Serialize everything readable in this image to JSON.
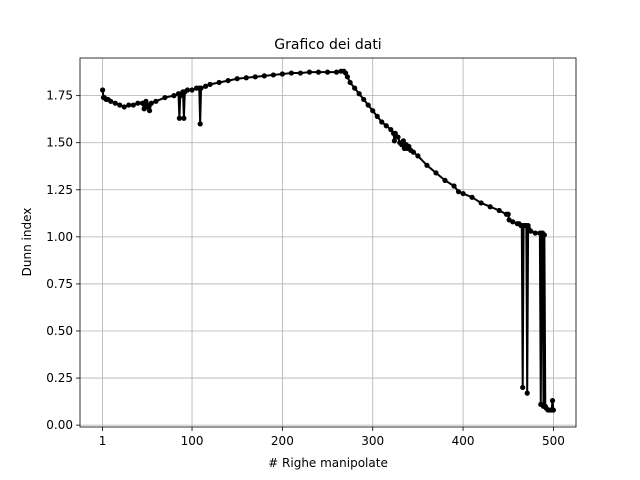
{
  "chart_data": {
    "type": "line",
    "title": "Grafico dei dati",
    "xlabel": "# Righe manipolate",
    "ylabel": "Dunn index",
    "xlim": [
      -24,
      525
    ],
    "ylim": [
      -0.01,
      1.95
    ],
    "x_ticks": [
      1,
      100,
      200,
      300,
      400,
      500
    ],
    "y_ticks": [
      0.0,
      0.25,
      0.5,
      0.75,
      1.0,
      1.25,
      1.5,
      1.75
    ],
    "y_tick_labels": [
      "0.00",
      "0.25",
      "0.50",
      "0.75",
      "1.00",
      "1.25",
      "1.50",
      "1.75"
    ],
    "grid": true,
    "marker": "circle",
    "color": "#000000",
    "series": [
      {
        "x": [
          1,
          2,
          3,
          5,
          7,
          10,
          15,
          20,
          25,
          30,
          35,
          40,
          45,
          47,
          48,
          49,
          50,
          52,
          53,
          55,
          60,
          70,
          80,
          85,
          86,
          87,
          88,
          90,
          91,
          92,
          95,
          100,
          105,
          108,
          109,
          110,
          115,
          120,
          130,
          140,
          150,
          160,
          170,
          180,
          190,
          200,
          210,
          220,
          230,
          240,
          250,
          260,
          265,
          268,
          270,
          272,
          275,
          280,
          285,
          290,
          295,
          300,
          305,
          310,
          315,
          320,
          323,
          324,
          325,
          328,
          330,
          332,
          334,
          335,
          337,
          338,
          340,
          342,
          345,
          350,
          360,
          370,
          380,
          390,
          395,
          400,
          410,
          420,
          430,
          440,
          448,
          450,
          451,
          455,
          460,
          462,
          464,
          465,
          466,
          467,
          468,
          469,
          470,
          471,
          472,
          473,
          475,
          480,
          485,
          486,
          487,
          488,
          489,
          490,
          491,
          492,
          494,
          496,
          498,
          499,
          500
        ],
        "y": [
          1.78,
          1.74,
          1.74,
          1.73,
          1.73,
          1.72,
          1.71,
          1.7,
          1.69,
          1.7,
          1.7,
          1.71,
          1.71,
          1.68,
          1.71,
          1.72,
          1.69,
          1.7,
          1.67,
          1.71,
          1.72,
          1.74,
          1.75,
          1.76,
          1.63,
          1.75,
          1.76,
          1.77,
          1.63,
          1.77,
          1.78,
          1.78,
          1.79,
          1.79,
          1.6,
          1.79,
          1.8,
          1.81,
          1.82,
          1.83,
          1.84,
          1.845,
          1.85,
          1.855,
          1.86,
          1.865,
          1.87,
          1.87,
          1.875,
          1.875,
          1.875,
          1.875,
          1.88,
          1.88,
          1.87,
          1.85,
          1.82,
          1.79,
          1.76,
          1.73,
          1.7,
          1.67,
          1.64,
          1.61,
          1.59,
          1.57,
          1.55,
          1.51,
          1.55,
          1.53,
          1.5,
          1.49,
          1.51,
          1.47,
          1.49,
          1.47,
          1.48,
          1.46,
          1.45,
          1.43,
          1.38,
          1.34,
          1.3,
          1.27,
          1.24,
          1.23,
          1.21,
          1.18,
          1.16,
          1.14,
          1.12,
          1.12,
          1.09,
          1.08,
          1.07,
          1.07,
          1.06,
          1.06,
          0.2,
          1.06,
          1.06,
          1.06,
          1.06,
          0.17,
          1.06,
          1.04,
          1.03,
          1.02,
          1.02,
          0.11,
          1.02,
          1.02,
          0.1,
          1.01,
          0.1,
          0.09,
          0.08,
          0.08,
          0.08,
          0.13,
          0.08
        ]
      }
    ]
  }
}
